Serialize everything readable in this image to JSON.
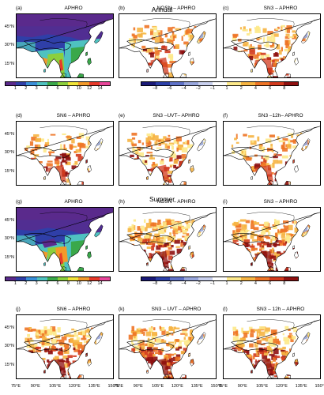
{
  "sections": [
    {
      "title": "Annual",
      "panels": [
        {
          "label": "(a)",
          "title": "APHRO",
          "kind": "abs"
        },
        {
          "label": "(b)",
          "title": "NOSN – APHRO",
          "kind": "diff"
        },
        {
          "label": "(c)",
          "title": "SN3 – APHRO",
          "kind": "diff"
        },
        {
          "label": "(d)",
          "title": "SN6 – APHRO",
          "kind": "diff"
        },
        {
          "label": "(e)",
          "title": "SN3 –UVT– APHRO",
          "kind": "diff"
        },
        {
          "label": "(f)",
          "title": "SN3 –12h– APHRO",
          "kind": "diff"
        }
      ]
    },
    {
      "title": "Summer",
      "panels": [
        {
          "label": "(g)",
          "title": "APHRO",
          "kind": "abs"
        },
        {
          "label": "(h)",
          "title": "NOSN – APHRO",
          "kind": "diff"
        },
        {
          "label": "(i)",
          "title": "SN3 – APHRO",
          "kind": "diff"
        },
        {
          "label": "(j)",
          "title": "SN6 – APHRO",
          "kind": "diff"
        },
        {
          "label": "(k)",
          "title": "SN3 – UVT – APHRO",
          "kind": "diff"
        },
        {
          "label": "(l)",
          "title": "SN3 – 12h – APHRO",
          "kind": "diff"
        }
      ]
    }
  ],
  "lat_ticks": [
    "45°N",
    "30°N",
    "15°N"
  ],
  "lon_ticks": [
    "75°E",
    "90°E",
    "105°E",
    "120°E",
    "135°E",
    "150°E"
  ],
  "colorbars": {
    "abs": {
      "ticks": [
        "1",
        "2",
        "3",
        "4",
        "6",
        "8",
        "10",
        "12",
        "14"
      ],
      "colors": [
        "#5a2a8c",
        "#2f3fa8",
        "#3a8fd8",
        "#4fc2c0",
        "#3aa84a",
        "#8ccf3c",
        "#f0e438",
        "#f39a2a",
        "#e83a2a",
        "#e8459a"
      ]
    },
    "diff": {
      "ticks": [
        "−8",
        "−6",
        "−4",
        "−2",
        "−1",
        "1",
        "2",
        "4",
        "6",
        "8"
      ],
      "colors": [
        "#1a1a78",
        "#2b3fa8",
        "#5f72c8",
        "#98a6dc",
        "#c9d0ee",
        "#ffffff",
        "#fde98a",
        "#f6b442",
        "#ee7426",
        "#d23a1e",
        "#8e1010"
      ]
    }
  }
}
